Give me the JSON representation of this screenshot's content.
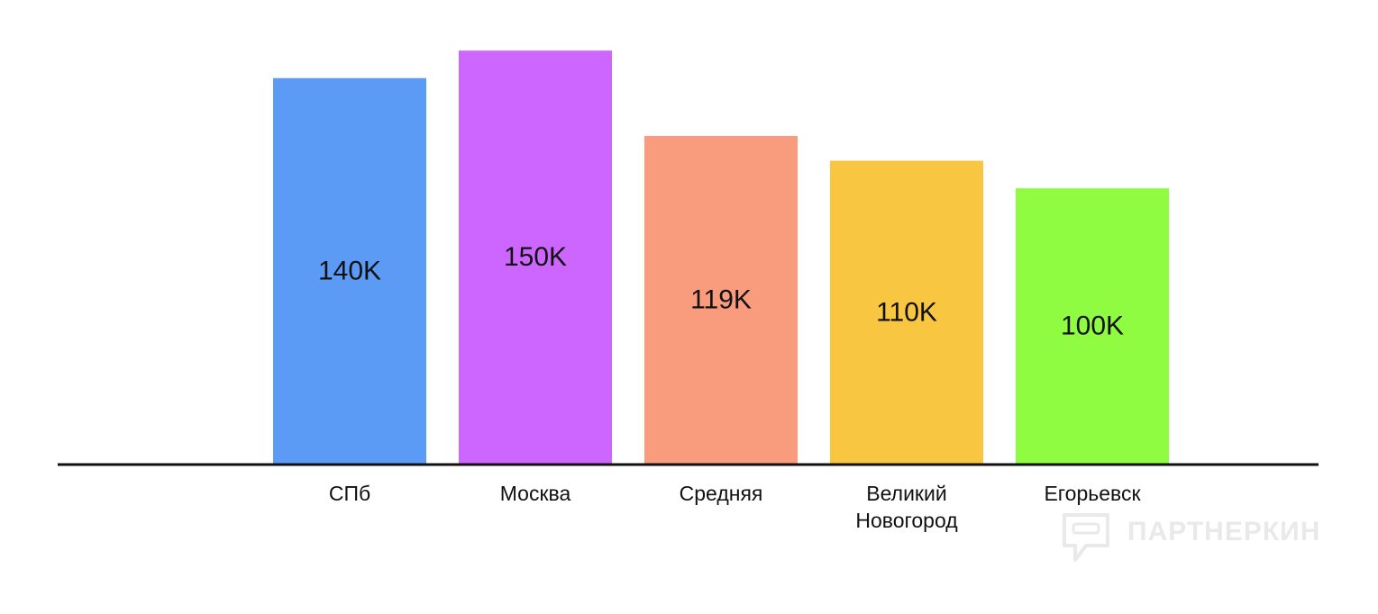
{
  "chart_data": {
    "type": "bar",
    "categories": [
      "СПб",
      "Москва",
      "Средняя",
      "Великий\nНовогород",
      "Егорьевск"
    ],
    "values": [
      140,
      150,
      119,
      110,
      100
    ],
    "value_labels": [
      "140K",
      "150K",
      "119K",
      "110K",
      "100K"
    ],
    "colors": [
      "#5b9af5",
      "#cc66ff",
      "#f99b7d",
      "#f9c642",
      "#8ffc42"
    ],
    "title": "",
    "xlabel": "",
    "ylabel": "",
    "ylim": [
      0,
      165
    ],
    "grid": false
  },
  "watermark": {
    "text": "ПАРТНЕРКИН",
    "icon": "partnerkin-logo-icon"
  }
}
